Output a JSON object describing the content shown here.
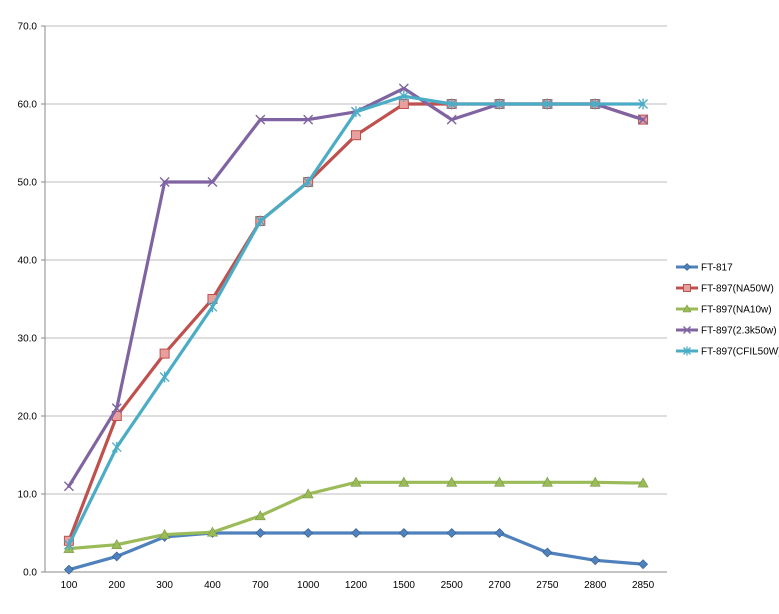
{
  "chart_data": {
    "type": "line",
    "title": "",
    "xlabel": "",
    "ylabel": "",
    "categories": [
      "100",
      "200",
      "300",
      "400",
      "700",
      "1000",
      "1200",
      "1500",
      "2500",
      "2700",
      "2750",
      "2800",
      "2850"
    ],
    "ylim": [
      0,
      70
    ],
    "yticks": [
      "0.0",
      "10.0",
      "20.0",
      "30.0",
      "40.0",
      "50.0",
      "60.0",
      "70.0"
    ],
    "grid": true,
    "legend_position": "right",
    "series": [
      {
        "name": "FT-817",
        "color": "#4F81BD",
        "marker": "diamond",
        "values": [
          0.3,
          2,
          4.5,
          5,
          5,
          5,
          5,
          5,
          5,
          5,
          2.5,
          1.5,
          1
        ]
      },
      {
        "name": "FT-897(NA50W)",
        "color": "#C0504D",
        "marker": "square",
        "values": [
          4,
          20,
          28,
          35,
          45,
          50,
          56,
          60,
          60,
          60,
          60,
          60,
          58
        ]
      },
      {
        "name": "FT-897(NA10w)",
        "color": "#9BBB59",
        "marker": "triangle",
        "values": [
          3,
          3.5,
          4.8,
          5.1,
          7.2,
          10,
          11.5,
          11.5,
          11.5,
          11.5,
          11.5,
          11.5,
          11.4
        ]
      },
      {
        "name": "FT-897(2.3k50w)",
        "color": "#8064A2",
        "marker": "x",
        "values": [
          11,
          21,
          50,
          50,
          58,
          58,
          59,
          62,
          58,
          60,
          60,
          60,
          58
        ]
      },
      {
        "name": "FT-897(CFIL50W)",
        "color": "#4BACC6",
        "marker": "star",
        "values": [
          3.5,
          16,
          25,
          34,
          45,
          50,
          59,
          61,
          60,
          60,
          60,
          60,
          60
        ]
      }
    ]
  }
}
